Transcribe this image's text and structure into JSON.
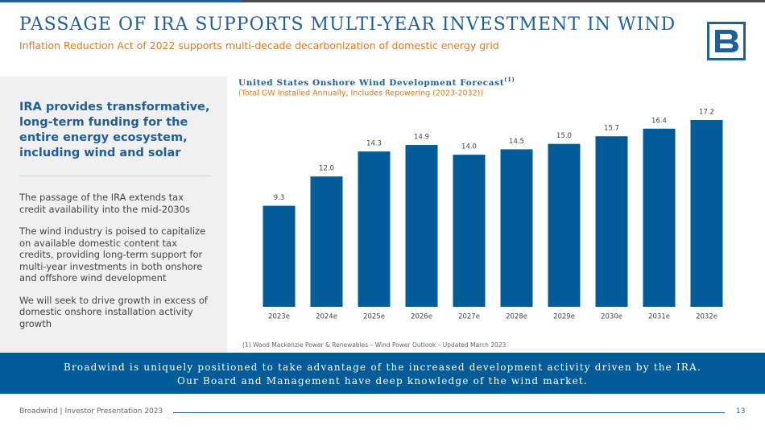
{
  "header": {
    "title": "PASSAGE OF IRA SUPPORTS MULTI-YEAR INVESTMENT IN WIND",
    "subtitle": "Inflation Reduction Act of 2022 supports multi-decade decarbonization of domestic energy grid"
  },
  "sidebar": {
    "heading": "IRA provides transformative, long-term funding for the entire energy ecosystem, including wind and solar",
    "paragraphs": [
      "The passage of the IRA extends tax credit availability into the mid-2030s",
      "The wind industry is poised to capitalize on available domestic content tax credits, providing long-term support for multi-year investments in both onshore and offshore wind development",
      "We will seek to drive growth in excess of domestic onshore installation activity growth"
    ]
  },
  "chart_data": {
    "type": "bar",
    "title": "United States Onshore Wind Development Forecast",
    "title_note": "(1)",
    "subtitle": "(Total GW Installed Annually, Includes Repowering (2023-2032))",
    "categories": [
      "2023e",
      "2024e",
      "2025e",
      "2026e",
      "2027e",
      "2028e",
      "2029e",
      "2030e",
      "2031e",
      "2032e"
    ],
    "values": [
      9.3,
      12.0,
      14.3,
      14.9,
      14.0,
      14.5,
      15.0,
      15.7,
      16.4,
      17.2
    ],
    "value_labels": [
      "9.3",
      "12.0",
      "14.3",
      "14.9",
      "14.0",
      "14.5",
      "15.0",
      "15.7",
      "16.4",
      "17.2"
    ],
    "color": "#005b96",
    "footnote": "(1) Wood Mackenzie Power & Renewables – Wind Power Outlook – Updated March 2023"
  },
  "banner": {
    "lines": [
      "Broadwind is uniquely positioned to take advantage of the increased development activity driven by the IRA.",
      "Our Board and Management have deep knowledge of the wind market."
    ]
  },
  "footer": {
    "left": "Broadwind  |  Investor Presentation 2023",
    "page": "13"
  }
}
